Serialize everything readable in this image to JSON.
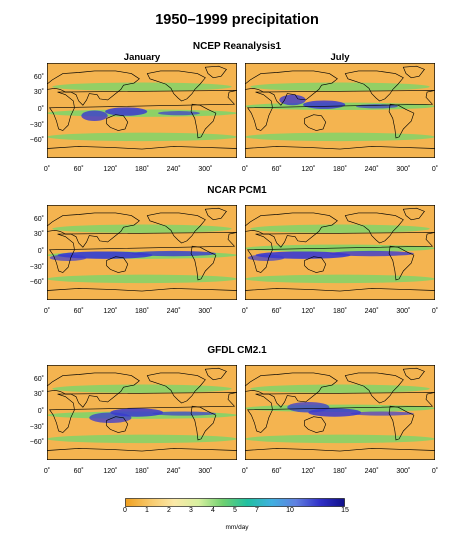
{
  "figure": {
    "title": "1950–1999 precipitation",
    "columns": [
      "January",
      "July"
    ],
    "models": [
      {
        "name": "NCEP Reanalysis1"
      },
      {
        "name": "NCAR PCM1"
      },
      {
        "name": "GFDL CM2.1"
      }
    ],
    "lat_ticks": [
      "60˚",
      "30˚",
      "0˚",
      "−30˚",
      "−60˚"
    ],
    "lon_ticks": [
      "0˚",
      "60˚",
      "120˚",
      "180˚",
      "240˚",
      "300˚",
      "0˚"
    ]
  },
  "colorbar": {
    "ticks": [
      "0",
      "1",
      "2",
      "3",
      "4",
      "5",
      "7",
      "10",
      "15"
    ],
    "tick_values": [
      0,
      1,
      2,
      3,
      4,
      5,
      7,
      10,
      15
    ],
    "units": "mm/day",
    "colors": [
      "#f0a020",
      "#f7c86a",
      "#fbe9a8",
      "#d8f0a0",
      "#70d070",
      "#20c0a0",
      "#40b0e0",
      "#6080e0",
      "#3030c8",
      "#10108a"
    ]
  },
  "map_colors": {
    "dry": "#f4b450",
    "moderate": "#7ad66a",
    "wet": "#3a3ad0",
    "land_outline": "#000000"
  }
}
